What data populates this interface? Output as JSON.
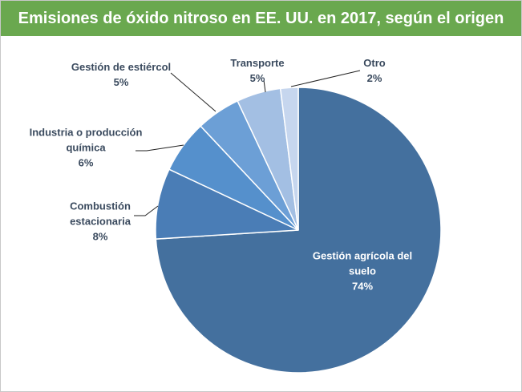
{
  "chart_data": {
    "type": "pie",
    "title": "Emisiones de óxido nitroso en EE. UU. en 2017, según el origen",
    "categories": [
      "Gestión agrícola del suelo",
      "Combustión estacionaria",
      "Industria o producción química",
      "Gestión de estiércol",
      "Transporte",
      "Otro"
    ],
    "values": [
      74,
      8,
      6,
      5,
      5,
      2
    ],
    "value_labels": [
      "74%",
      "8%",
      "6%",
      "5%",
      "5%",
      "2%"
    ],
    "colors": [
      "#44709e",
      "#4a7db6",
      "#5590cc",
      "#6c9fd6",
      "#a3bfe3",
      "#c6d6ee"
    ]
  }
}
